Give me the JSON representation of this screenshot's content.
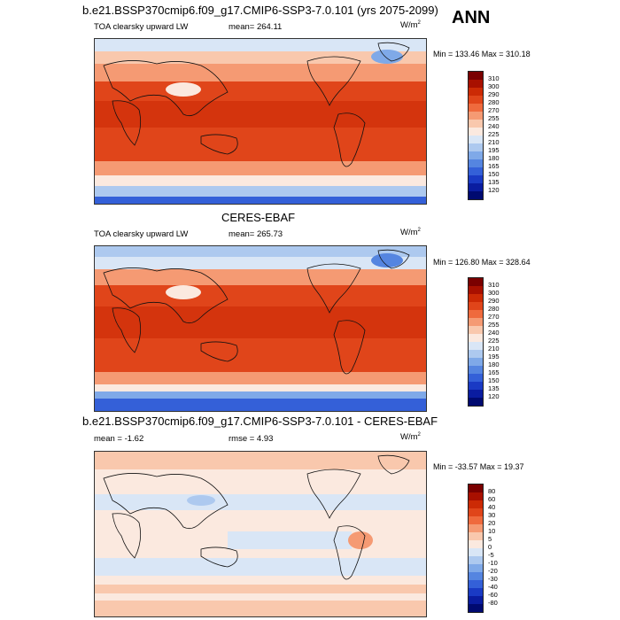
{
  "season": "ANN",
  "panels": [
    {
      "title": "b.e21.BSSP370cmip6.f09_g17.CMIP6-SSP3-7.0.101 (yrs 2075-2099)",
      "left_text": "TOA clearsky upward LW",
      "mid_text": "mean= 264.11",
      "units": "W/m",
      "units_sup": "2",
      "minmax": "Min = 133.46 Max = 310.18"
    },
    {
      "title": "CERES-EBAF",
      "left_text": "TOA clearsky upward LW",
      "mid_text": "mean= 265.73",
      "units": "W/m",
      "units_sup": "2",
      "minmax": "Min = 126.80 Max = 328.64"
    },
    {
      "title": "b.e21.BSSP370cmip6.f09_g17.CMIP6-SSP3-7.0.101 - CERES-EBAF",
      "left_text": "mean =  -1.62",
      "mid_text": "rmse =   4.93",
      "units": "W/m",
      "units_sup": "2",
      "minmax": "Min = -33.57 Max =  19.37"
    }
  ],
  "colorbars": {
    "abs": {
      "labels": [
        "310",
        "300",
        "290",
        "280",
        "270",
        "255",
        "240",
        "225",
        "210",
        "195",
        "180",
        "165",
        "150",
        "135",
        "120"
      ],
      "colors": [
        "#7a0000",
        "#a81000",
        "#cc2a05",
        "#e0451a",
        "#ef6a3d",
        "#f59a73",
        "#f9c8ad",
        "#fbe9df",
        "#d9e6f6",
        "#adc9ef",
        "#7fa9e8",
        "#5585e0",
        "#3460d8",
        "#1a3ac4",
        "#0a1ca0",
        "#000a70"
      ]
    },
    "diff": {
      "labels": [
        "80",
        "60",
        "40",
        "30",
        "20",
        "10",
        "5",
        "0",
        "-5",
        "-10",
        "-20",
        "-30",
        "-40",
        "-60",
        "-80"
      ],
      "colors": [
        "#7a0000",
        "#a81000",
        "#cc2a05",
        "#e0451a",
        "#ef6a3d",
        "#f59a73",
        "#f9c8ad",
        "#fbe9df",
        "#d9e6f6",
        "#adc9ef",
        "#7fa9e8",
        "#5585e0",
        "#3460d8",
        "#1a3ac4",
        "#0a1ca0",
        "#000a70"
      ]
    }
  }
}
